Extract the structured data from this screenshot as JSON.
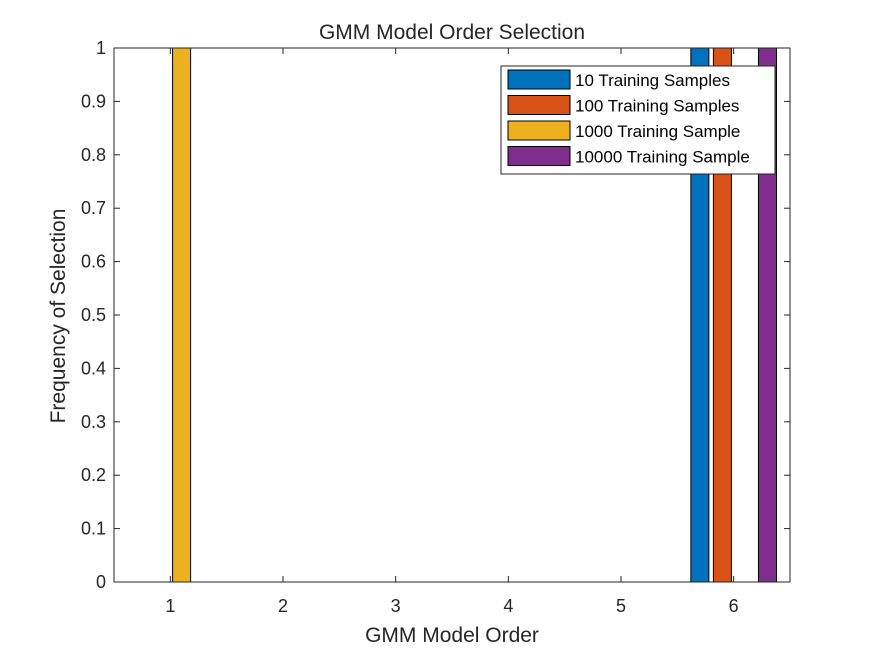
{
  "chart_data": {
    "type": "bar",
    "title": "GMM Model Order Selection",
    "xlabel": "GMM Model Order",
    "ylabel": "Frequency of Selection",
    "categories": [
      "1",
      "2",
      "3",
      "4",
      "5",
      "6"
    ],
    "xlim": [
      0.5,
      6.5
    ],
    "ylim": [
      0,
      1
    ],
    "yticks": [
      "0",
      "0.1",
      "0.2",
      "0.3",
      "0.4",
      "0.5",
      "0.6",
      "0.7",
      "0.8",
      "0.9",
      "1"
    ],
    "series": [
      {
        "name": "10 Training Samples",
        "color": "#0072BD",
        "values": [
          0,
          0,
          0,
          0,
          0,
          1
        ]
      },
      {
        "name": "100 Training Samples",
        "color": "#D95319",
        "values": [
          0,
          0,
          0,
          0,
          0,
          1
        ]
      },
      {
        "name": "1000 Training Sample",
        "color": "#EDB120",
        "values": [
          1,
          0,
          0,
          0,
          0,
          0
        ]
      },
      {
        "name": "10000 Training Sample",
        "color": "#7E2F8E",
        "values": [
          0,
          0,
          0,
          0,
          0,
          1
        ]
      }
    ],
    "grid": false,
    "legend": "top-right"
  }
}
